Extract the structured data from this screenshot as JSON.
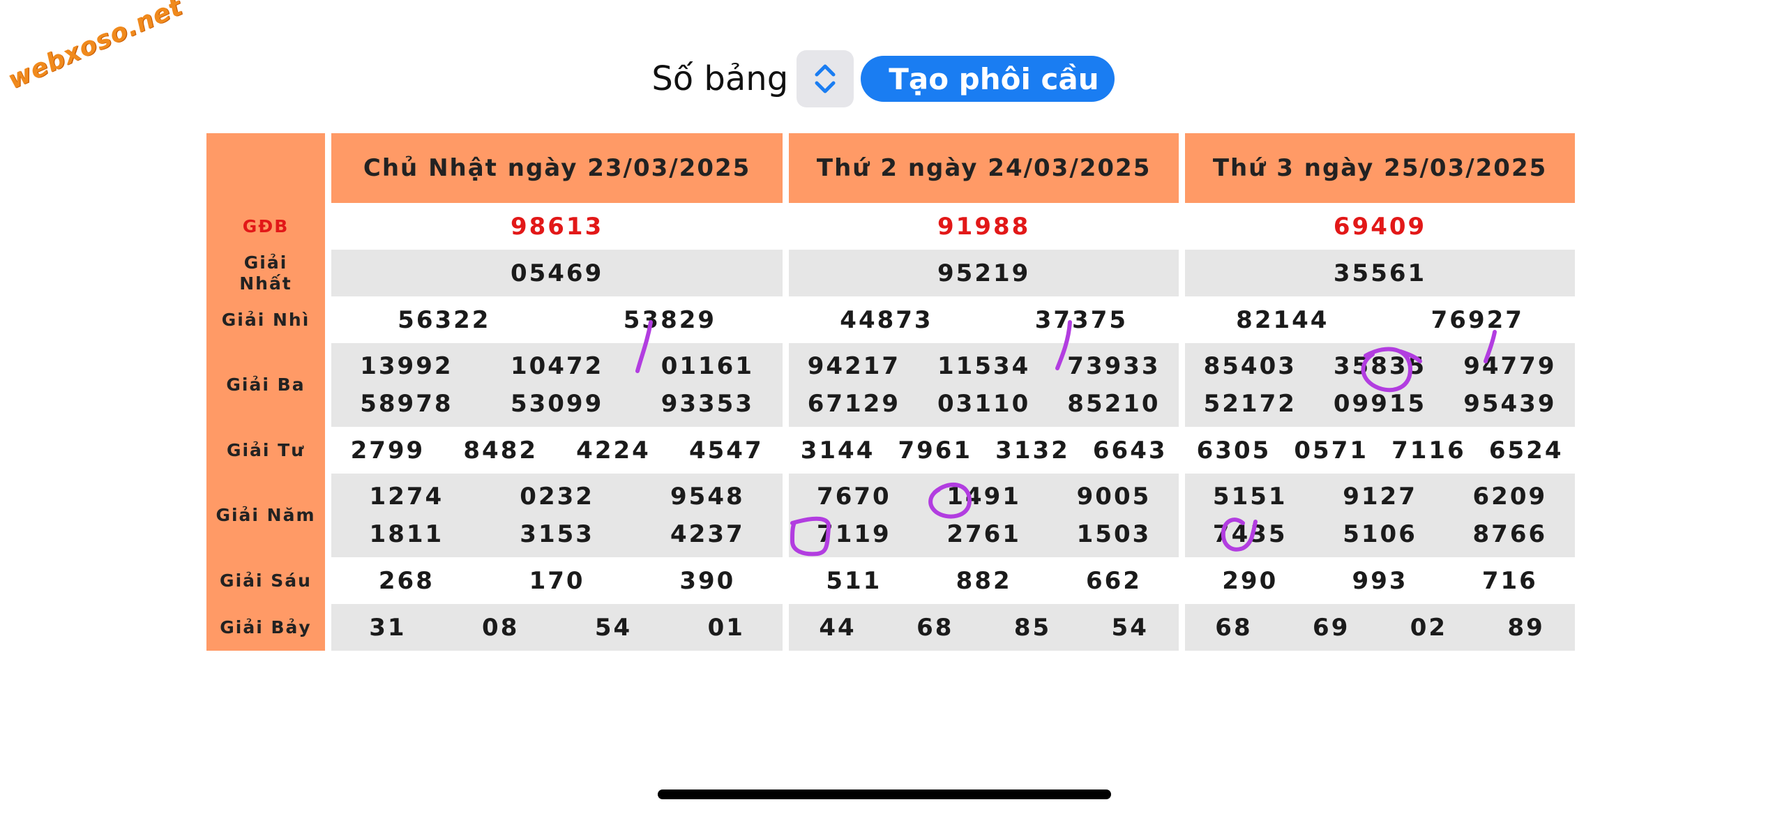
{
  "watermark": "webxoso.net",
  "toolbar": {
    "label": "Số bảng",
    "stepper_icon": "chevron-up-down-icon",
    "button_label": "Tạo phôi cầu"
  },
  "colors": {
    "header_bg": "#ff9a66",
    "special_prize": "#e21818",
    "button": "#1a7df2",
    "annotation": "#b23de0"
  },
  "prize_labels": {
    "gdb": "GĐB",
    "nhat": "Giải Nhất",
    "nhi": "Giải Nhì",
    "ba": "Giải Ba",
    "tu": "Giải Tư",
    "nam": "Giải Năm",
    "sau": "Giải Sáu",
    "bay": "Giải Bảy"
  },
  "days": [
    {
      "title": "Chủ Nhật ngày 23/03/2025",
      "gdb": "98613",
      "nhat": "05469",
      "nhi": [
        "56322",
        "53829"
      ],
      "ba": [
        [
          "13992",
          "10472",
          "01161"
        ],
        [
          "58978",
          "53099",
          "93353"
        ]
      ],
      "tu": [
        "2799",
        "8482",
        "4224",
        "4547"
      ],
      "nam": [
        [
          "1274",
          "0232",
          "9548"
        ],
        [
          "1811",
          "3153",
          "4237"
        ]
      ],
      "sau": [
        "268",
        "170",
        "390"
      ],
      "bay": [
        "31",
        "08",
        "54",
        "01"
      ]
    },
    {
      "title": "Thứ 2 ngày 24/03/2025",
      "gdb": "91988",
      "nhat": "95219",
      "nhi": [
        "44873",
        "37375"
      ],
      "ba": [
        [
          "94217",
          "11534",
          "73933"
        ],
        [
          "67129",
          "03110",
          "85210"
        ]
      ],
      "tu": [
        "3144",
        "7961",
        "3132",
        "6643"
      ],
      "nam": [
        [
          "7670",
          "1491",
          "9005"
        ],
        [
          "7119",
          "2761",
          "1503"
        ]
      ],
      "sau": [
        "511",
        "882",
        "662"
      ],
      "bay": [
        "44",
        "68",
        "85",
        "54"
      ]
    },
    {
      "title": "Thứ 3 ngày 25/03/2025",
      "gdb": "69409",
      "nhat": "35561",
      "nhi": [
        "82144",
        "76927"
      ],
      "ba": [
        [
          "85403",
          "35835",
          "94779"
        ],
        [
          "52172",
          "09915",
          "95439"
        ]
      ],
      "tu": [
        "6305",
        "0571",
        "7116",
        "6524"
      ],
      "nam": [
        [
          "5151",
          "9127",
          "6209"
        ],
        [
          "7435",
          "5106",
          "8766"
        ]
      ],
      "sau": [
        "290",
        "993",
        "716"
      ],
      "bay": [
        "68",
        "69",
        "02",
        "89"
      ]
    }
  ]
}
